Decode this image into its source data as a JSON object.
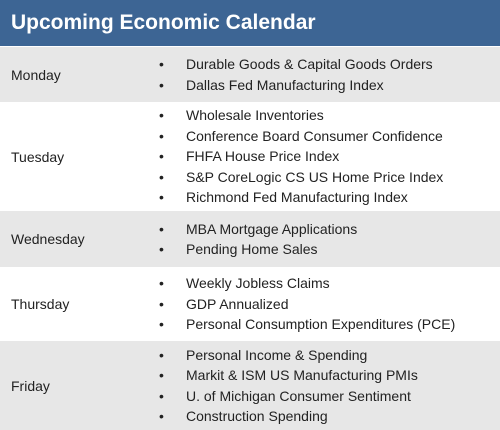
{
  "header": {
    "title": "Upcoming Economic Calendar"
  },
  "days": [
    {
      "day": "Monday",
      "items": [
        "Durable Goods & Capital Goods Orders",
        "Dallas Fed Manufacturing Index"
      ]
    },
    {
      "day": "Tuesday",
      "items": [
        "Wholesale Inventories",
        "Conference Board Consumer Confidence",
        "FHFA House Price Index",
        "S&P CoreLogic CS US Home Price Index",
        "Richmond Fed Manufacturing Index"
      ]
    },
    {
      "day": "Wednesday",
      "items": [
        "MBA Mortgage Applications",
        "Pending Home Sales"
      ]
    },
    {
      "day": "Thursday",
      "items": [
        "Weekly Jobless Claims",
        "GDP Annualized",
        "Personal Consumption Expenditures (PCE)"
      ]
    },
    {
      "day": "Friday",
      "items": [
        "Personal Income & Spending",
        "Markit & ISM US Manufacturing PMIs",
        "U. of Michigan Consumer Sentiment",
        "Construction Spending"
      ]
    }
  ],
  "colors": {
    "header_bg": "#3d6594",
    "shaded_row": "#e7e7e7"
  }
}
